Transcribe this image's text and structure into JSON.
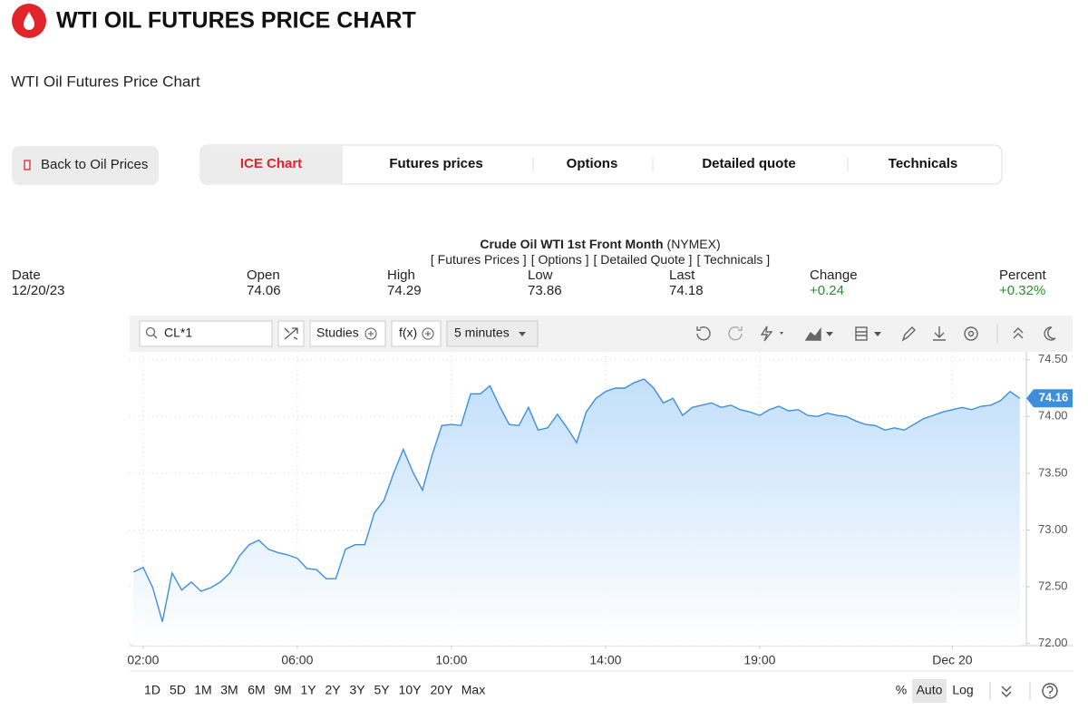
{
  "header": {
    "title": "WTI OIL FUTURES PRICE CHART",
    "subtitle": "WTI Oil Futures Price Chart"
  },
  "back_button": "Back to Oil Prices",
  "tabs": [
    "ICE Chart",
    "Futures prices",
    "Options",
    "Detailed quote",
    "Technicals"
  ],
  "quote": {
    "name": "Crude Oil WTI 1st Front Month",
    "exchange": "(NYMEX)",
    "links": [
      "[ Futures Prices ]",
      "[ Options ]",
      "[ Detailed Quote ]",
      "[ Technicals ]"
    ],
    "columns": [
      "Date",
      "Open",
      "High",
      "Low",
      "Last",
      "Change",
      "Percent"
    ],
    "values": [
      "12/20/23",
      "74.06",
      "74.29",
      "73.86",
      "74.18",
      "+0.24",
      "+0.32%"
    ]
  },
  "toolbar": {
    "symbol": "CL*1",
    "studies": "Studies",
    "fx": "f(x)",
    "interval": "5 minutes"
  },
  "ranges": [
    "1D",
    "5D",
    "1M",
    "3M",
    "6M",
    "9M",
    "1Y",
    "2Y",
    "3Y",
    "5Y",
    "10Y",
    "20Y",
    "Max"
  ],
  "scale_options": [
    "%",
    "Auto",
    "Log"
  ],
  "chart_data": {
    "type": "area",
    "color": "#3d8fdb",
    "grid": true,
    "x": [
      -0.25,
      0,
      0.25,
      0.5,
      0.75,
      1,
      1.25,
      1.5,
      1.75,
      2,
      2.25,
      2.5,
      2.75,
      3,
      3.25,
      3.5,
      3.75,
      4,
      4.25,
      4.5,
      4.75,
      5,
      5.25,
      5.5,
      5.75,
      6,
      6.25,
      6.5,
      6.75,
      7,
      7.25,
      7.5,
      7.75,
      8,
      8.25,
      8.5,
      8.75,
      9,
      9.25,
      9.5,
      9.75,
      10,
      10.25,
      10.5,
      10.75,
      11,
      11.25,
      11.5,
      11.75,
      12,
      12.25,
      12.5,
      12.75,
      13,
      13.25,
      13.5,
      13.75,
      14,
      14.25,
      14.5,
      14.75,
      15,
      15.25,
      15.5,
      15.75,
      16,
      16.25,
      16.5,
      16.75,
      17,
      17.25,
      17.5,
      17.75,
      18,
      18.25,
      18.5,
      18.75,
      19,
      19.25,
      19.5,
      19.75,
      20,
      20.25,
      20.5,
      20.75,
      21,
      21.25,
      21.5,
      21.75,
      22,
      22.25,
      22.5,
      22.75
    ],
    "values": [
      72.63,
      72.67,
      72.49,
      72.19,
      72.62,
      72.47,
      72.54,
      72.46,
      72.49,
      72.54,
      72.62,
      72.77,
      72.87,
      72.91,
      72.83,
      72.8,
      72.78,
      72.75,
      72.66,
      72.65,
      72.57,
      72.57,
      72.83,
      72.87,
      72.87,
      73.15,
      73.26,
      73.5,
      73.71,
      73.51,
      73.35,
      73.66,
      73.92,
      73.93,
      73.92,
      74.2,
      74.2,
      74.27,
      74.09,
      73.93,
      73.92,
      74.08,
      73.88,
      73.9,
      74.02,
      73.9,
      73.77,
      74.04,
      74.16,
      74.22,
      74.25,
      74.25,
      74.3,
      74.33,
      74.25,
      74.12,
      74.16,
      74.01,
      74.08,
      74.1,
      74.12,
      74.08,
      74.1,
      74.06,
      74.04,
      74.01,
      74.06,
      74.09,
      74.05,
      74.06,
      74.01,
      74.0,
      74.03,
      74.01,
      74.0,
      73.96,
      73.93,
      73.92,
      73.88,
      73.9,
      73.88,
      73.93,
      73.98,
      74.01,
      74.04,
      74.06,
      74.08,
      74.06,
      74.09,
      74.1,
      74.14,
      74.22,
      74.16
    ],
    "xlim": [
      -0.35,
      22.92
    ],
    "xticks": [
      {
        "value": 0,
        "label": "02:00"
      },
      {
        "value": 4,
        "label": "06:00"
      },
      {
        "value": 8,
        "label": "10:00"
      },
      {
        "value": 12,
        "label": "14:00"
      },
      {
        "value": 16,
        "label": "19:00"
      },
      {
        "value": 21,
        "label": "Dec 20"
      }
    ],
    "ylim": [
      71.98,
      74.57
    ],
    "yticks": [
      {
        "value": 72,
        "label": "72.00"
      },
      {
        "value": 72.5,
        "label": "72.50"
      },
      {
        "value": 73,
        "label": "73.00"
      },
      {
        "value": 73.5,
        "label": "73.50"
      },
      {
        "value": 74,
        "label": "74.00"
      },
      {
        "value": 74.5,
        "label": "74.50"
      }
    ]
  }
}
